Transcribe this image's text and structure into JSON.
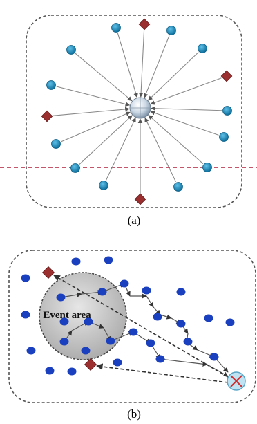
{
  "figure_a": {
    "caption": "(a)",
    "colors": {
      "sensor": "#2a8ab8",
      "sensor_edge": "#0d5e85",
      "source": "#9b2f2f",
      "source_edge": "#5c1414",
      "sink": "#c9d6e3",
      "arrow": "#8a8a8a",
      "boundary_line": "#b01e3c",
      "frame": "#555555"
    }
  },
  "figure_b": {
    "caption": "(b)",
    "event_label": "Event area",
    "colors": {
      "sensor": "#1a3fbf",
      "source": "#9b2f2f",
      "sink": "#bfe3f2",
      "sink_mark": "#d22a2a",
      "event_fill": "#d2d2d2",
      "path": "#555555",
      "frame": "#555555"
    }
  }
}
